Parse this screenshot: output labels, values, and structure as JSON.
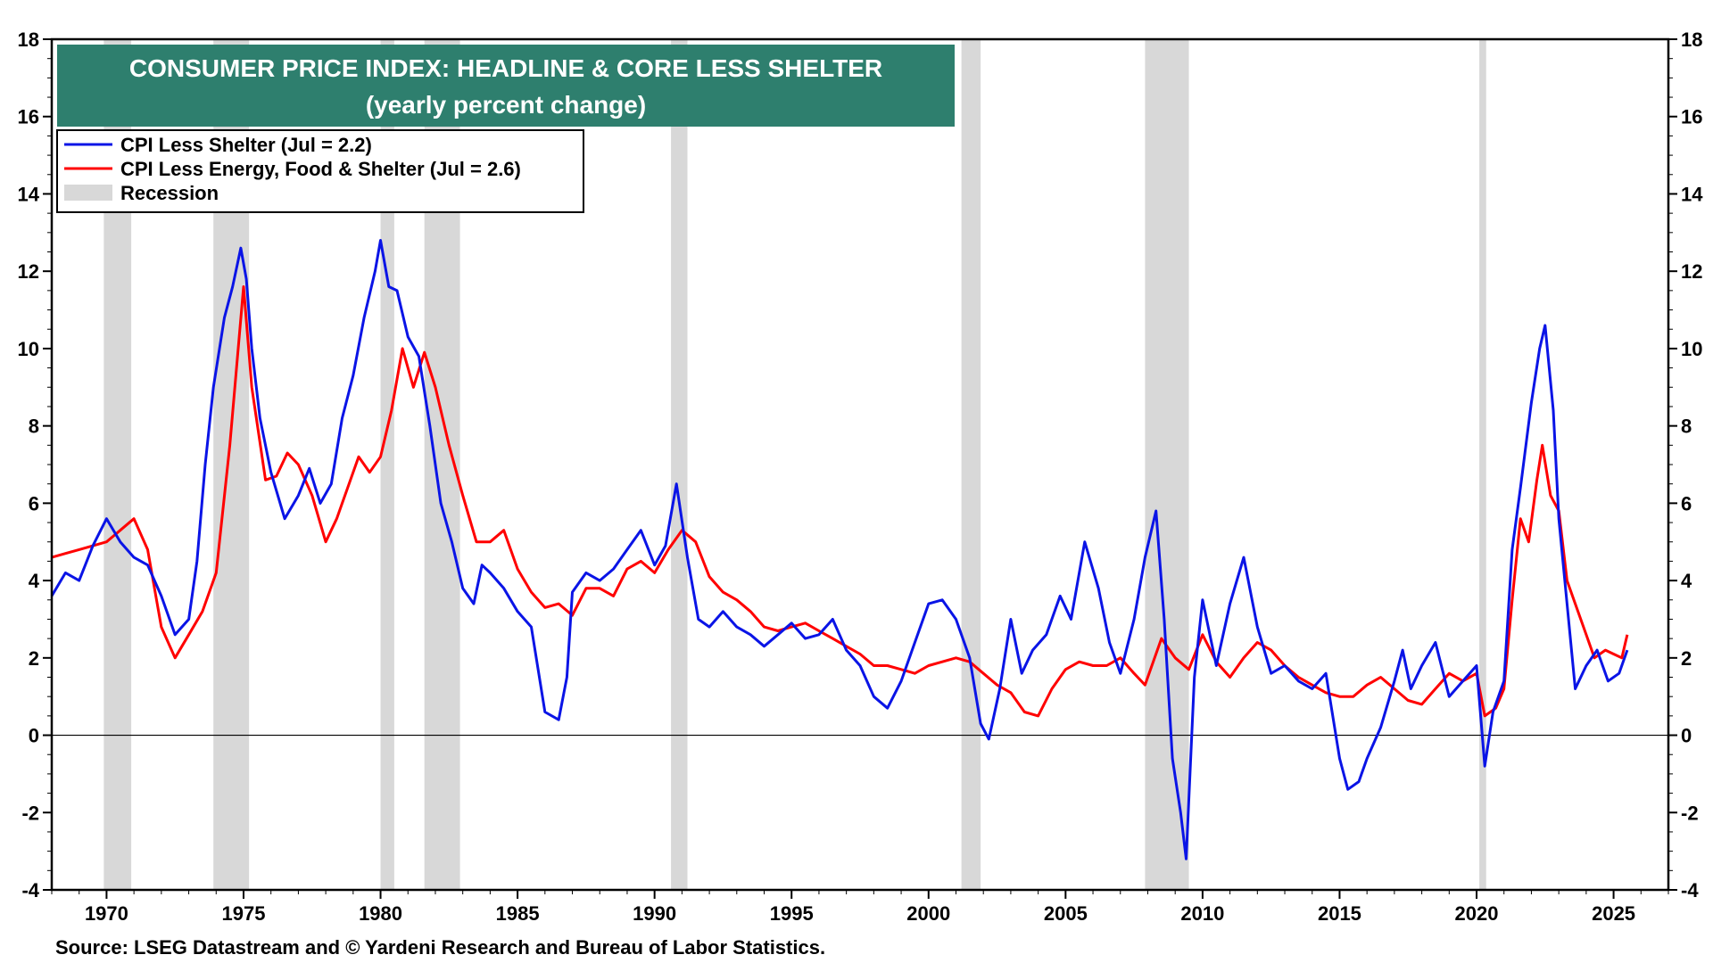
{
  "chart_data": {
    "type": "line",
    "title": "CONSUMER PRICE INDEX: HEADLINE & CORE LESS SHELTER",
    "subtitle": "(yearly percent change)",
    "source": "Source: LSEG Datastream and © Yardeni Research and Bureau of Labor Statistics.",
    "xlim": [
      1968.0,
      2027.0
    ],
    "ylim": [
      -4,
      18
    ],
    "x_ticks": [
      1970,
      1975,
      1980,
      1985,
      1990,
      1995,
      2000,
      2005,
      2010,
      2015,
      2020,
      2025
    ],
    "y_ticks": [
      -4,
      -2,
      0,
      2,
      4,
      6,
      8,
      10,
      12,
      14,
      16,
      18
    ],
    "right_axis": true,
    "grid": false,
    "legend_position": "top-left",
    "colors": {
      "title_bg": "#2e7f6e",
      "headline": "#0a14e6",
      "core": "#ff0000",
      "recession": "#d8d8d8"
    },
    "legend": [
      {
        "label": "CPI Less Shelter (Jul = 2.2)",
        "kind": "line",
        "color": "#0a14e6"
      },
      {
        "label": "CPI Less Energy, Food & Shelter (Jul = 2.6)",
        "kind": "line",
        "color": "#ff0000"
      },
      {
        "label": "Recession",
        "kind": "band",
        "color": "#d8d8d8"
      }
    ],
    "recessions": [
      [
        1969.9,
        1970.9
      ],
      [
        1973.9,
        1975.2
      ],
      [
        1980.0,
        1980.5
      ],
      [
        1981.6,
        1982.9
      ],
      [
        1990.6,
        1991.2
      ],
      [
        2001.2,
        2001.9
      ],
      [
        2007.9,
        2009.5
      ],
      [
        2020.1,
        2020.35
      ]
    ],
    "series": [
      {
        "name": "CPI Less Shelter (Jul = 2.2)",
        "points": [
          [
            1968.0,
            3.6
          ],
          [
            1968.5,
            4.2
          ],
          [
            1969.0,
            4.0
          ],
          [
            1969.5,
            4.9
          ],
          [
            1970.0,
            5.6
          ],
          [
            1970.5,
            5.0
          ],
          [
            1971.0,
            4.6
          ],
          [
            1971.5,
            4.4
          ],
          [
            1972.0,
            3.6
          ],
          [
            1972.5,
            2.6
          ],
          [
            1973.0,
            3.0
          ],
          [
            1973.3,
            4.5
          ],
          [
            1973.6,
            7.0
          ],
          [
            1973.9,
            9.0
          ],
          [
            1974.3,
            10.8
          ],
          [
            1974.6,
            11.6
          ],
          [
            1974.9,
            12.6
          ],
          [
            1975.1,
            11.8
          ],
          [
            1975.3,
            10.0
          ],
          [
            1975.6,
            8.2
          ],
          [
            1976.0,
            6.8
          ],
          [
            1976.5,
            5.6
          ],
          [
            1977.0,
            6.2
          ],
          [
            1977.4,
            6.9
          ],
          [
            1977.8,
            6.0
          ],
          [
            1978.2,
            6.5
          ],
          [
            1978.6,
            8.2
          ],
          [
            1979.0,
            9.3
          ],
          [
            1979.4,
            10.8
          ],
          [
            1979.8,
            12.0
          ],
          [
            1980.0,
            12.8
          ],
          [
            1980.3,
            11.6
          ],
          [
            1980.6,
            11.5
          ],
          [
            1981.0,
            10.3
          ],
          [
            1981.4,
            9.8
          ],
          [
            1981.8,
            8.0
          ],
          [
            1982.2,
            6.0
          ],
          [
            1982.6,
            5.0
          ],
          [
            1983.0,
            3.8
          ],
          [
            1983.4,
            3.4
          ],
          [
            1983.7,
            4.4
          ],
          [
            1984.0,
            4.2
          ],
          [
            1984.5,
            3.8
          ],
          [
            1985.0,
            3.2
          ],
          [
            1985.5,
            2.8
          ],
          [
            1986.0,
            0.6
          ],
          [
            1986.5,
            0.4
          ],
          [
            1986.8,
            1.5
          ],
          [
            1987.0,
            3.7
          ],
          [
            1987.5,
            4.2
          ],
          [
            1988.0,
            4.0
          ],
          [
            1988.5,
            4.3
          ],
          [
            1989.0,
            4.8
          ],
          [
            1989.5,
            5.3
          ],
          [
            1990.0,
            4.4
          ],
          [
            1990.4,
            4.9
          ],
          [
            1990.8,
            6.5
          ],
          [
            1991.2,
            4.6
          ],
          [
            1991.6,
            3.0
          ],
          [
            1992.0,
            2.8
          ],
          [
            1992.5,
            3.2
          ],
          [
            1993.0,
            2.8
          ],
          [
            1993.5,
            2.6
          ],
          [
            1994.0,
            2.3
          ],
          [
            1994.5,
            2.6
          ],
          [
            1995.0,
            2.9
          ],
          [
            1995.5,
            2.5
          ],
          [
            1996.0,
            2.6
          ],
          [
            1996.5,
            3.0
          ],
          [
            1997.0,
            2.2
          ],
          [
            1997.5,
            1.8
          ],
          [
            1998.0,
            1.0
          ],
          [
            1998.5,
            0.7
          ],
          [
            1999.0,
            1.4
          ],
          [
            1999.5,
            2.4
          ],
          [
            2000.0,
            3.4
          ],
          [
            2000.5,
            3.5
          ],
          [
            2001.0,
            3.0
          ],
          [
            2001.5,
            2.0
          ],
          [
            2001.9,
            0.3
          ],
          [
            2002.2,
            -0.1
          ],
          [
            2002.6,
            1.2
          ],
          [
            2003.0,
            3.0
          ],
          [
            2003.4,
            1.6
          ],
          [
            2003.8,
            2.2
          ],
          [
            2004.3,
            2.6
          ],
          [
            2004.8,
            3.6
          ],
          [
            2005.2,
            3.0
          ],
          [
            2005.7,
            5.0
          ],
          [
            2006.2,
            3.8
          ],
          [
            2006.6,
            2.4
          ],
          [
            2007.0,
            1.6
          ],
          [
            2007.5,
            3.0
          ],
          [
            2007.9,
            4.6
          ],
          [
            2008.3,
            5.8
          ],
          [
            2008.6,
            3.0
          ],
          [
            2008.9,
            -0.6
          ],
          [
            2009.2,
            -2.0
          ],
          [
            2009.4,
            -3.2
          ],
          [
            2009.7,
            1.5
          ],
          [
            2010.0,
            3.5
          ],
          [
            2010.5,
            1.8
          ],
          [
            2011.0,
            3.4
          ],
          [
            2011.5,
            4.6
          ],
          [
            2012.0,
            2.8
          ],
          [
            2012.5,
            1.6
          ],
          [
            2013.0,
            1.8
          ],
          [
            2013.5,
            1.4
          ],
          [
            2014.0,
            1.2
          ],
          [
            2014.5,
            1.6
          ],
          [
            2015.0,
            -0.6
          ],
          [
            2015.3,
            -1.4
          ],
          [
            2015.7,
            -1.2
          ],
          [
            2016.0,
            -0.6
          ],
          [
            2016.5,
            0.2
          ],
          [
            2017.0,
            1.4
          ],
          [
            2017.3,
            2.2
          ],
          [
            2017.6,
            1.2
          ],
          [
            2018.0,
            1.8
          ],
          [
            2018.5,
            2.4
          ],
          [
            2019.0,
            1.0
          ],
          [
            2019.5,
            1.4
          ],
          [
            2020.0,
            1.8
          ],
          [
            2020.3,
            -0.8
          ],
          [
            2020.6,
            0.6
          ],
          [
            2021.0,
            1.4
          ],
          [
            2021.3,
            4.8
          ],
          [
            2021.6,
            6.4
          ],
          [
            2022.0,
            8.6
          ],
          [
            2022.3,
            10.0
          ],
          [
            2022.5,
            10.6
          ],
          [
            2022.8,
            8.4
          ],
          [
            2023.0,
            5.6
          ],
          [
            2023.3,
            3.4
          ],
          [
            2023.6,
            1.2
          ],
          [
            2024.0,
            1.8
          ],
          [
            2024.4,
            2.2
          ],
          [
            2024.8,
            1.4
          ],
          [
            2025.2,
            1.6
          ],
          [
            2025.5,
            2.2
          ]
        ]
      },
      {
        "name": "CPI Less Energy, Food & Shelter (Jul = 2.6)",
        "points": [
          [
            1968.0,
            4.6
          ],
          [
            1968.5,
            4.7
          ],
          [
            1969.0,
            4.8
          ],
          [
            1969.5,
            4.9
          ],
          [
            1970.0,
            5.0
          ],
          [
            1970.5,
            5.3
          ],
          [
            1971.0,
            5.6
          ],
          [
            1971.5,
            4.8
          ],
          [
            1972.0,
            2.8
          ],
          [
            1972.5,
            2.0
          ],
          [
            1973.0,
            2.6
          ],
          [
            1973.5,
            3.2
          ],
          [
            1974.0,
            4.2
          ],
          [
            1974.5,
            7.5
          ],
          [
            1975.0,
            11.6
          ],
          [
            1975.3,
            9.0
          ],
          [
            1975.8,
            6.6
          ],
          [
            1976.2,
            6.7
          ],
          [
            1976.6,
            7.3
          ],
          [
            1977.0,
            7.0
          ],
          [
            1977.5,
            6.2
          ],
          [
            1978.0,
            5.0
          ],
          [
            1978.4,
            5.6
          ],
          [
            1978.8,
            6.4
          ],
          [
            1979.2,
            7.2
          ],
          [
            1979.6,
            6.8
          ],
          [
            1980.0,
            7.2
          ],
          [
            1980.4,
            8.4
          ],
          [
            1980.8,
            10.0
          ],
          [
            1981.2,
            9.0
          ],
          [
            1981.6,
            9.9
          ],
          [
            1982.0,
            9.0
          ],
          [
            1982.5,
            7.5
          ],
          [
            1983.0,
            6.2
          ],
          [
            1983.5,
            5.0
          ],
          [
            1984.0,
            5.0
          ],
          [
            1984.5,
            5.3
          ],
          [
            1985.0,
            4.3
          ],
          [
            1985.5,
            3.7
          ],
          [
            1986.0,
            3.3
          ],
          [
            1986.5,
            3.4
          ],
          [
            1987.0,
            3.1
          ],
          [
            1987.5,
            3.8
          ],
          [
            1988.0,
            3.8
          ],
          [
            1988.5,
            3.6
          ],
          [
            1989.0,
            4.3
          ],
          [
            1989.5,
            4.5
          ],
          [
            1990.0,
            4.2
          ],
          [
            1990.5,
            4.8
          ],
          [
            1991.0,
            5.3
          ],
          [
            1991.5,
            5.0
          ],
          [
            1992.0,
            4.1
          ],
          [
            1992.5,
            3.7
          ],
          [
            1993.0,
            3.5
          ],
          [
            1993.5,
            3.2
          ],
          [
            1994.0,
            2.8
          ],
          [
            1994.5,
            2.7
          ],
          [
            1995.0,
            2.8
          ],
          [
            1995.5,
            2.9
          ],
          [
            1996.0,
            2.7
          ],
          [
            1996.5,
            2.5
          ],
          [
            1997.0,
            2.3
          ],
          [
            1997.5,
            2.1
          ],
          [
            1998.0,
            1.8
          ],
          [
            1998.5,
            1.8
          ],
          [
            1999.0,
            1.7
          ],
          [
            1999.5,
            1.6
          ],
          [
            2000.0,
            1.8
          ],
          [
            2000.5,
            1.9
          ],
          [
            2001.0,
            2.0
          ],
          [
            2001.5,
            1.9
          ],
          [
            2002.0,
            1.6
          ],
          [
            2002.5,
            1.3
          ],
          [
            2003.0,
            1.1
          ],
          [
            2003.5,
            0.6
          ],
          [
            2004.0,
            0.5
          ],
          [
            2004.5,
            1.2
          ],
          [
            2005.0,
            1.7
          ],
          [
            2005.5,
            1.9
          ],
          [
            2006.0,
            1.8
          ],
          [
            2006.5,
            1.8
          ],
          [
            2007.0,
            2.0
          ],
          [
            2007.5,
            1.6
          ],
          [
            2007.9,
            1.3
          ],
          [
            2008.5,
            2.5
          ],
          [
            2009.0,
            2.0
          ],
          [
            2009.5,
            1.7
          ],
          [
            2010.0,
            2.6
          ],
          [
            2010.5,
            1.9
          ],
          [
            2011.0,
            1.5
          ],
          [
            2011.5,
            2.0
          ],
          [
            2012.0,
            2.4
          ],
          [
            2012.5,
            2.2
          ],
          [
            2013.0,
            1.8
          ],
          [
            2013.5,
            1.5
          ],
          [
            2014.0,
            1.3
          ],
          [
            2014.5,
            1.1
          ],
          [
            2015.0,
            1.0
          ],
          [
            2015.5,
            1.0
          ],
          [
            2016.0,
            1.3
          ],
          [
            2016.5,
            1.5
          ],
          [
            2017.0,
            1.2
          ],
          [
            2017.5,
            0.9
          ],
          [
            2018.0,
            0.8
          ],
          [
            2018.5,
            1.2
          ],
          [
            2019.0,
            1.6
          ],
          [
            2019.5,
            1.4
          ],
          [
            2020.0,
            1.6
          ],
          [
            2020.3,
            0.5
          ],
          [
            2020.7,
            0.7
          ],
          [
            2021.0,
            1.2
          ],
          [
            2021.3,
            3.5
          ],
          [
            2021.6,
            5.6
          ],
          [
            2021.9,
            5.0
          ],
          [
            2022.2,
            6.6
          ],
          [
            2022.4,
            7.5
          ],
          [
            2022.7,
            6.2
          ],
          [
            2023.0,
            5.8
          ],
          [
            2023.3,
            4.0
          ],
          [
            2023.6,
            3.4
          ],
          [
            2024.0,
            2.6
          ],
          [
            2024.3,
            2.0
          ],
          [
            2024.7,
            2.2
          ],
          [
            2025.0,
            2.1
          ],
          [
            2025.3,
            2.0
          ],
          [
            2025.5,
            2.6
          ]
        ]
      }
    ]
  }
}
